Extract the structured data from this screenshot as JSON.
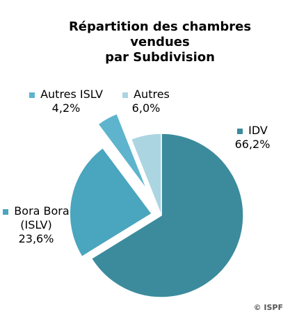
{
  "chart_data": {
    "type": "pie",
    "title": "Répartition des chambres\nvendues\npar Subdivision",
    "categories": [
      "IDV",
      "Bora Bora (ISLV)",
      "Autres ISLV",
      "Autres"
    ],
    "values": [
      66.2,
      23.6,
      4.2,
      6.0
    ],
    "value_labels": [
      "66,2%",
      "23,6%",
      "4,2%",
      "6,0%"
    ],
    "colors": [
      "#3b8b9d",
      "#4aa5be",
      "#5db4cc",
      "#abd5e1"
    ],
    "source": "© ISPF"
  }
}
